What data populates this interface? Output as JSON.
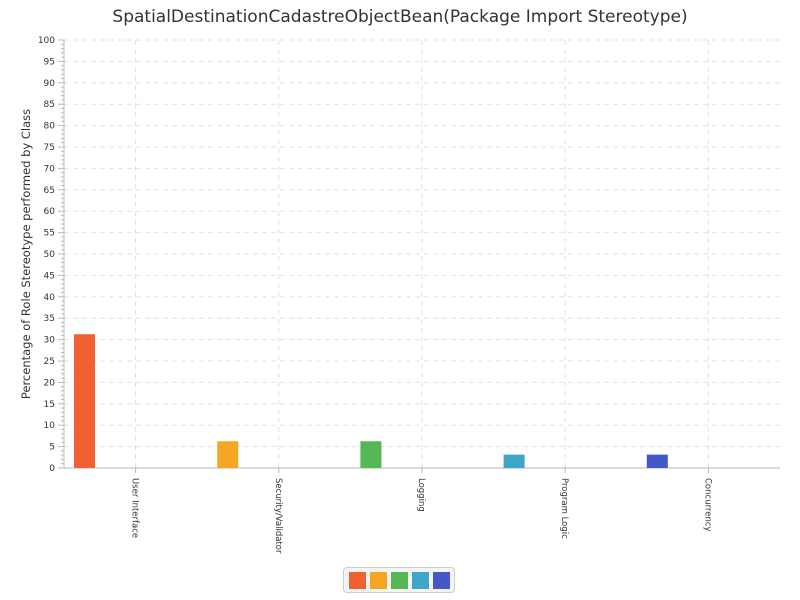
{
  "chart_data": {
    "type": "bar",
    "title": "SpatialDestinationCadastreObjectBean(Package Import Stereotype)",
    "xlabel": "",
    "ylabel": "Percentage of Role Stereotype performed by Class",
    "ylim": [
      0,
      100
    ],
    "yticks": [
      0,
      5,
      10,
      15,
      20,
      25,
      30,
      35,
      40,
      45,
      50,
      55,
      60,
      65,
      70,
      75,
      80,
      85,
      90,
      95,
      100
    ],
    "categories": [
      "User Interface",
      "Security/Validator",
      "Logging",
      "Program Logic",
      "Concurrency"
    ],
    "values": [
      31.25,
      6.25,
      6.25,
      3.125,
      3.125
    ],
    "colors": [
      "#f06031",
      "#f5a623",
      "#55b755",
      "#3fa6c5",
      "#4458c8"
    ],
    "grid": true,
    "legend": "bottom-center"
  }
}
